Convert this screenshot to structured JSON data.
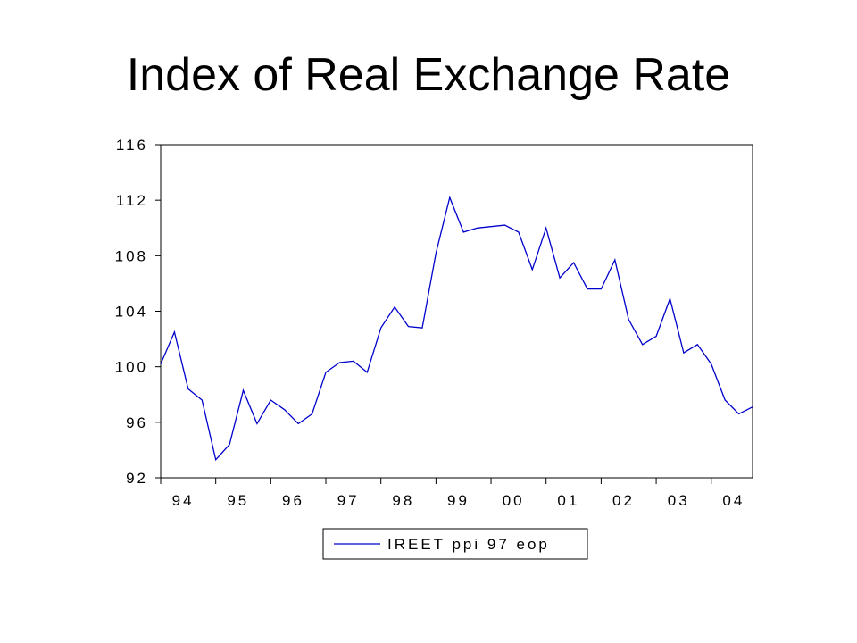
{
  "slide": {
    "title": "Index of Real Exchange Rate"
  },
  "chart_data": {
    "type": "line",
    "title": "",
    "xlabel": "",
    "ylabel": "",
    "ylim": [
      92,
      116
    ],
    "y_ticks": [
      92,
      96,
      100,
      104,
      108,
      112,
      116
    ],
    "y_tick_labels": [
      "92",
      "96",
      "100",
      "104",
      "108",
      "112",
      "116"
    ],
    "x_tick_labels": [
      "94",
      "95",
      "96",
      "97",
      "98",
      "99",
      "00",
      "01",
      "02",
      "03",
      "04"
    ],
    "x_start_year": 1994,
    "periods_per_year": 4,
    "grid": false,
    "legend": "bottom",
    "series": [
      {
        "name": "IREET ppi 97 eop",
        "color": "#0000cc",
        "values": [
          100.2,
          102.5,
          98.4,
          97.6,
          93.3,
          94.4,
          98.3,
          95.9,
          97.6,
          96.9,
          95.9,
          96.6,
          99.6,
          100.3,
          100.4,
          99.6,
          102.8,
          104.3,
          102.9,
          102.8,
          108.2,
          112.2,
          109.7,
          110.0,
          110.1,
          110.2,
          109.7,
          107.0,
          110.0,
          106.4,
          107.5,
          105.6,
          105.6,
          107.7,
          103.4,
          101.6,
          102.2,
          104.9,
          101.0,
          101.6,
          100.2,
          97.6,
          96.6,
          97.1
        ]
      }
    ]
  }
}
